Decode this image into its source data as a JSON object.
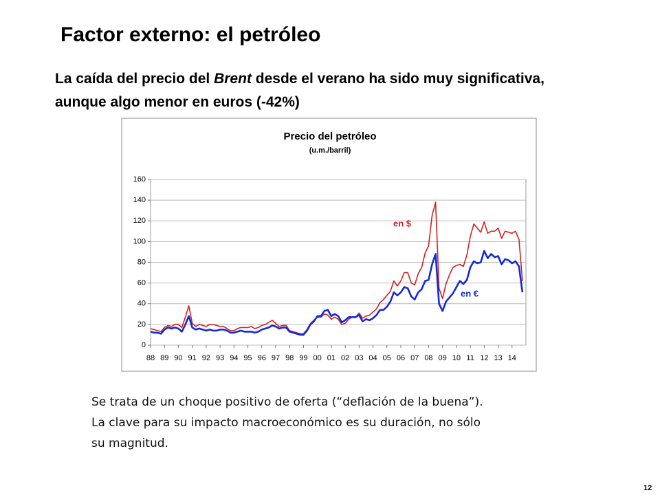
{
  "slide": {
    "title": "Factor externo: el petróleo",
    "subtitle": [
      "La caída del precio del ",
      "Brent",
      " desde el verano ha sido muy significativa, aunque algo menor en euros (-42%)"
    ],
    "body": "Se trata de un choque positivo de oferta (“deflación de la buena”). La clave para su impacto macroeconómico es su duración, no sólo su magnitud.",
    "page_number": "12"
  },
  "chart_data": {
    "type": "line",
    "title": "Precio del petróleo",
    "subtitle": "(u.m./barril)",
    "categories": [
      "88",
      null,
      null,
      null,
      "89",
      null,
      null,
      null,
      "90",
      null,
      null,
      null,
      "91",
      null,
      null,
      null,
      "92",
      null,
      null,
      null,
      "93",
      null,
      null,
      null,
      "94",
      null,
      null,
      null,
      "95",
      null,
      null,
      null,
      "96",
      null,
      null,
      null,
      "97",
      null,
      null,
      null,
      "98",
      null,
      null,
      null,
      "99",
      null,
      null,
      null,
      "00",
      null,
      null,
      null,
      "01",
      null,
      null,
      null,
      "02",
      null,
      null,
      null,
      "03",
      null,
      null,
      null,
      "04",
      null,
      null,
      null,
      "05",
      null,
      null,
      null,
      "06",
      null,
      null,
      null,
      "07",
      null,
      null,
      null,
      "08",
      null,
      null,
      null,
      "09",
      null,
      null,
      null,
      "10",
      null,
      null,
      null,
      "11",
      null,
      null,
      null,
      "12",
      null,
      null,
      null,
      "13",
      null,
      null,
      null,
      "14",
      null,
      null,
      null
    ],
    "series": [
      {
        "name": "en $",
        "color": "#d42020",
        "values": [
          16,
          15,
          14,
          13,
          17,
          19,
          18,
          20,
          20,
          17,
          27,
          38,
          21,
          18,
          20,
          19,
          18,
          20,
          20,
          19,
          18,
          18,
          16,
          14,
          14,
          16,
          17,
          17,
          17,
          18,
          16,
          17,
          19,
          20,
          22,
          24,
          21,
          18,
          19,
          19,
          14,
          13,
          12,
          11,
          11,
          15,
          21,
          24,
          27,
          27,
          30,
          29,
          25,
          27,
          25,
          20,
          21,
          25,
          27,
          27,
          31,
          26,
          28,
          29,
          32,
          35,
          41,
          44,
          48,
          52,
          62,
          57,
          62,
          70,
          70,
          60,
          58,
          69,
          75,
          89,
          96,
          125,
          138,
          55,
          45,
          59,
          68,
          75,
          77,
          78,
          76,
          87,
          105,
          117,
          113,
          109,
          119,
          108,
          110,
          110,
          113,
          103,
          110,
          109,
          108,
          110,
          102,
          62
        ]
      },
      {
        "name": "en €",
        "color": "#1428d8",
        "values": [
          13,
          12,
          12,
          11,
          15,
          17,
          16,
          17,
          16,
          13,
          20,
          28,
          17,
          15,
          16,
          15,
          14,
          15,
          14,
          14,
          15,
          15,
          14,
          12,
          12,
          13,
          14,
          13,
          13,
          13,
          12,
          13,
          15,
          16,
          17,
          19,
          18,
          16,
          17,
          17,
          13,
          12,
          11,
          10,
          10,
          14,
          20,
          23,
          28,
          28,
          33,
          34,
          28,
          30,
          28,
          22,
          24,
          27,
          27,
          27,
          29,
          23,
          25,
          24,
          26,
          29,
          34,
          34,
          37,
          42,
          51,
          48,
          51,
          56,
          55,
          47,
          44,
          51,
          54,
          62,
          63,
          78,
          88,
          40,
          33,
          42,
          46,
          50,
          56,
          62,
          59,
          63,
          75,
          81,
          79,
          80,
          91,
          84,
          88,
          85,
          86,
          78,
          83,
          82,
          79,
          81,
          76,
          51
        ]
      }
    ],
    "ylim": [
      0,
      160
    ],
    "yticks": [
      0,
      20,
      40,
      60,
      80,
      100,
      120,
      140,
      160
    ],
    "grid": true
  }
}
